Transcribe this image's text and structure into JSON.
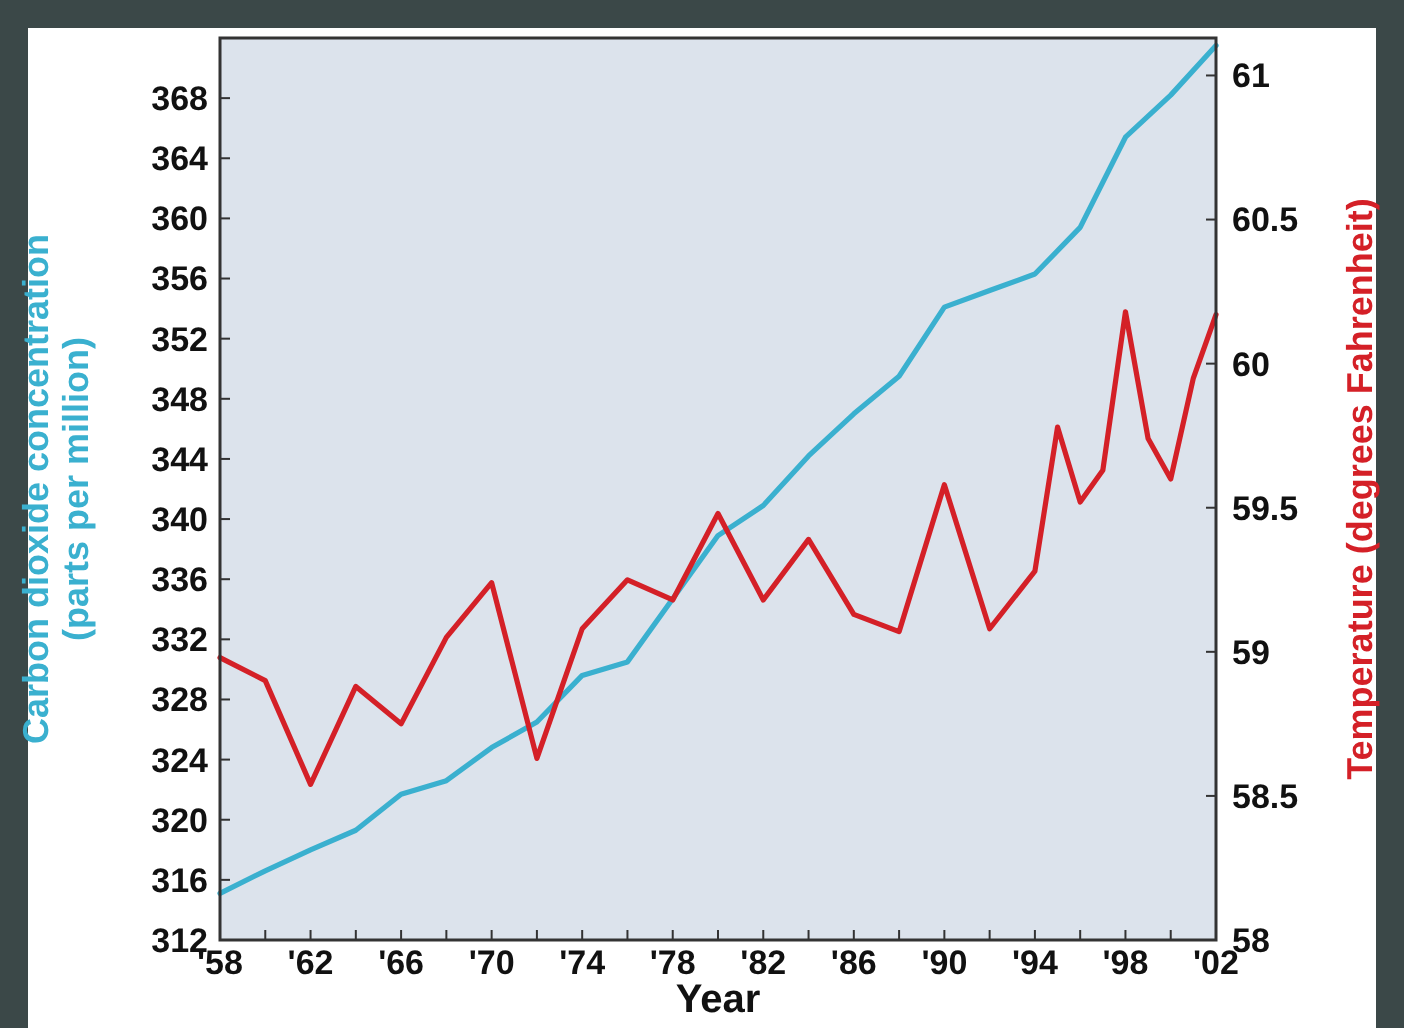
{
  "chart_data": {
    "type": "line",
    "xlabel": "Year",
    "ylabel": "Carbon dioxide concentration\n(parts per million)",
    "y2label": "Temperature (degrees Fahrenheit)",
    "xlim": [
      1958,
      2002
    ],
    "xticks": [
      {
        "value": 1958,
        "label": "'58"
      },
      {
        "value": 1960,
        "label": null
      },
      {
        "value": 1962,
        "label": "'62"
      },
      {
        "value": 1964,
        "label": null
      },
      {
        "value": 1966,
        "label": "'66"
      },
      {
        "value": 1968,
        "label": null
      },
      {
        "value": 1970,
        "label": "'70"
      },
      {
        "value": 1972,
        "label": null
      },
      {
        "value": 1974,
        "label": "'74"
      },
      {
        "value": 1976,
        "label": null
      },
      {
        "value": 1978,
        "label": "'78"
      },
      {
        "value": 1980,
        "label": null
      },
      {
        "value": 1982,
        "label": "'82"
      },
      {
        "value": 1984,
        "label": null
      },
      {
        "value": 1986,
        "label": "'86"
      },
      {
        "value": 1988,
        "label": null
      },
      {
        "value": 1990,
        "label": "'90"
      },
      {
        "value": 1992,
        "label": null
      },
      {
        "value": 1994,
        "label": "'94"
      },
      {
        "value": 1996,
        "label": null
      },
      {
        "value": 1998,
        "label": "'98"
      },
      {
        "value": 2000,
        "label": null
      },
      {
        "value": 2002,
        "label": "'02"
      }
    ],
    "ylim": [
      312,
      372
    ],
    "yticks": [
      312,
      316,
      320,
      324,
      328,
      332,
      336,
      340,
      344,
      348,
      352,
      356,
      360,
      364,
      368
    ],
    "y2lim": [
      58,
      61.13
    ],
    "y2ticks": [
      58,
      58.5,
      59,
      59.5,
      60,
      60.5,
      61
    ],
    "grid": false,
    "marker": "none",
    "line_style": "solid",
    "series": [
      {
        "color": "#3ab0cf",
        "x": [
          1958,
          1960,
          1962,
          1964,
          1966,
          1968,
          1970,
          1972,
          1974,
          1976,
          1978,
          1980,
          1982,
          1984,
          1986,
          1988,
          1990,
          1992,
          1994,
          1996,
          1998,
          2000,
          2002
        ],
        "values": [
          315.1,
          316.6,
          318,
          319.3,
          321.7,
          322.6,
          324.8,
          326.5,
          329.6,
          330.5,
          334.7,
          338.9,
          340.9,
          344.2,
          347,
          349.5,
          354.1,
          355.2,
          356.3,
          359.4,
          365.4,
          368.2,
          371.5
        ]
      },
      {
        "color": "#d42027",
        "axis": "y2",
        "x": [
          1958,
          1960,
          1962,
          1964,
          1966,
          1968,
          1970,
          1972,
          1974,
          1976,
          1978,
          1980,
          1982,
          1984,
          1986,
          1988,
          1990,
          1992,
          1994,
          1995,
          1996,
          1997,
          1998,
          1999,
          2000,
          2001,
          2002
        ],
        "values": [
          58.98,
          58.9,
          58.54,
          58.88,
          58.75,
          59.05,
          59.24,
          58.63,
          59.08,
          59.25,
          59.18,
          59.48,
          59.18,
          59.39,
          59.13,
          59.07,
          59.58,
          59.08,
          59.28,
          59.78,
          59.52,
          59.63,
          60.18,
          59.74,
          59.6,
          59.95,
          60.17
        ]
      }
    ]
  }
}
